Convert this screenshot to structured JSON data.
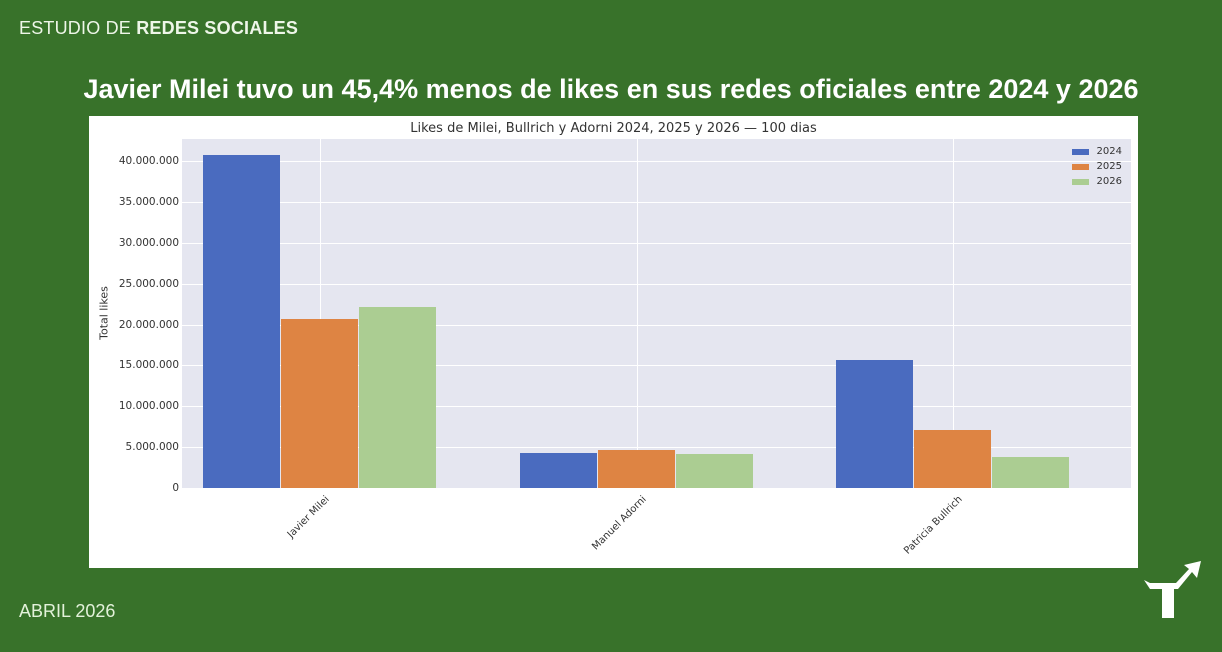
{
  "header": {
    "kicker_light": "ESTUDIO DE ",
    "kicker_bold": "REDES SOCIALES",
    "headline": "Javier Milei tuvo un 45,4% menos de likes en sus redes oficiales entre 2024 y 2026"
  },
  "footer": {
    "date": "ABRIL 2026",
    "logo": "arrow-turn-logo-icon"
  },
  "colors": {
    "background": "#38722a",
    "2024": "#4a6bbf",
    "2025": "#de8443",
    "2026": "#abcd92"
  },
  "chart_data": {
    "type": "bar",
    "title": "Likes de Milei, Bullrich y Adorni 2024, 2025 y 2026 — 100 dias",
    "xlabel": "",
    "ylabel": "Total likes",
    "ylim": [
      0,
      42700000
    ],
    "yticks": [
      "0",
      "5.000.000",
      "10.000.000",
      "15.000.000",
      "20.000.000",
      "25.000.000",
      "30.000.000",
      "35.000.000",
      "40.000.000"
    ],
    "grid": true,
    "legend_position": "upper right",
    "categories": [
      "Javier Milei",
      "Manuel Adorni",
      "Patricia Bullrich"
    ],
    "series": [
      {
        "name": "2024",
        "color": "#4a6bbf",
        "values": [
          40700000,
          4300000,
          15700000
        ]
      },
      {
        "name": "2025",
        "color": "#de8443",
        "values": [
          20700000,
          4700000,
          7100000
        ]
      },
      {
        "name": "2026",
        "color": "#abcd92",
        "values": [
          22200000,
          4200000,
          3800000
        ]
      }
    ]
  }
}
